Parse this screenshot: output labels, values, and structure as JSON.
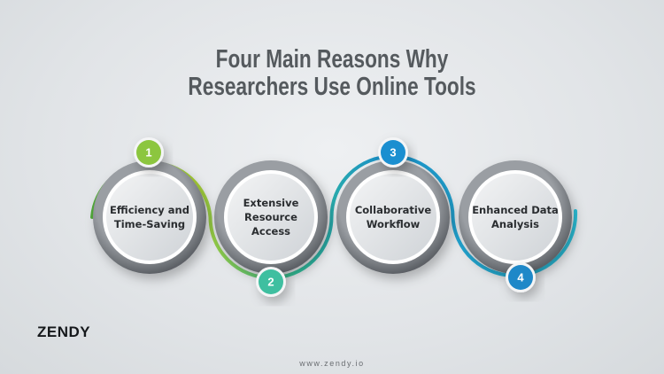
{
  "title": {
    "line1": "Four Main Reasons Why",
    "line2": "Researchers Use Online Tools"
  },
  "steps": [
    {
      "number": "1",
      "label": "Efficiency and Time-Saving",
      "badge_color": "#8cc63f"
    },
    {
      "number": "2",
      "label": "Extensive Resource Access",
      "badge_color": "#3fbfa0"
    },
    {
      "number": "3",
      "label": "Collaborative Workflow",
      "badge_color": "#1b8fd0"
    },
    {
      "number": "4",
      "label": "Enhanced Data Analysis",
      "badge_color": "#1e88c8"
    }
  ],
  "brand": {
    "logo": "ZENDY",
    "url": "www.zendy.io"
  }
}
